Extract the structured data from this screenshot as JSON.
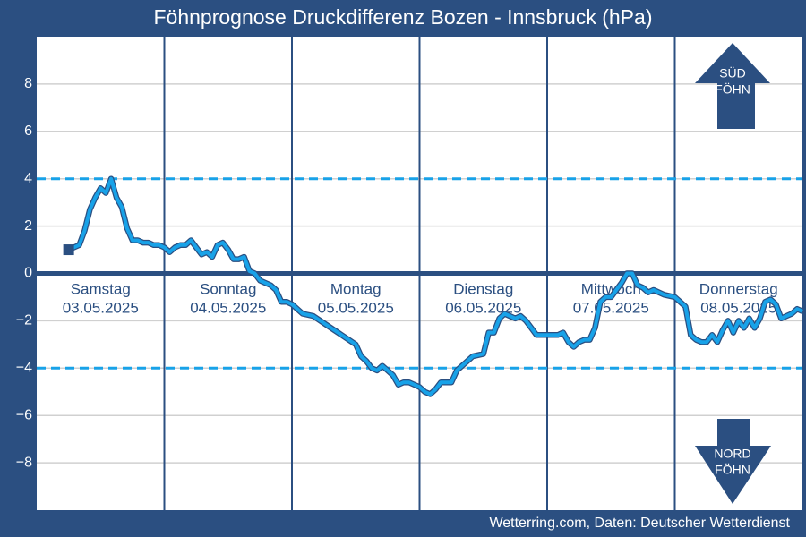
{
  "chart_data": {
    "type": "line",
    "title": "Föhnprognose Druckdifferenz Bozen - Innsbruck (hPa)",
    "source": "Wetterring.com, Daten: Deutscher Wetterdienst",
    "color": "#18a2e8",
    "x": [
      6,
      8,
      9,
      10,
      11,
      12,
      13,
      14,
      15,
      16,
      17,
      18,
      19,
      20,
      21,
      22,
      23,
      24,
      25,
      26,
      27,
      28,
      29,
      30,
      31,
      32,
      33,
      34,
      35,
      36,
      37,
      38,
      39,
      40,
      41,
      42,
      43,
      44,
      45,
      46,
      47,
      48,
      50,
      52,
      54,
      56,
      58,
      60,
      61,
      62,
      63,
      64,
      65,
      66,
      67,
      68,
      69,
      70,
      71,
      72,
      73,
      74,
      75,
      76,
      77,
      78,
      79,
      80,
      81,
      82,
      84,
      85,
      86,
      87,
      88,
      89,
      90,
      91,
      92,
      93,
      94,
      96,
      98,
      99,
      100,
      101,
      102,
      103,
      104,
      105,
      106,
      107,
      108,
      109,
      110,
      111,
      112,
      113,
      114,
      115,
      116,
      118,
      120,
      122,
      123,
      124,
      125,
      126,
      127,
      128,
      129,
      130,
      131,
      132,
      133,
      134,
      135,
      136,
      137,
      138,
      139,
      140,
      141,
      142,
      143,
      144
    ],
    "values": [
      1.0,
      1.2,
      1.8,
      2.7,
      3.2,
      3.6,
      3.4,
      4.0,
      3.2,
      2.8,
      1.9,
      1.4,
      1.4,
      1.3,
      1.3,
      1.2,
      1.2,
      1.1,
      0.9,
      1.1,
      1.2,
      1.2,
      1.4,
      1.1,
      0.8,
      0.9,
      0.7,
      1.2,
      1.3,
      1.0,
      0.6,
      0.6,
      0.7,
      0.1,
      0.0,
      -0.3,
      -0.4,
      -0.5,
      -0.7,
      -1.2,
      -1.2,
      -1.3,
      -1.7,
      -1.8,
      -2.1,
      -2.4,
      -2.7,
      -3.0,
      -3.5,
      -3.7,
      -4.0,
      -4.1,
      -3.9,
      -4.1,
      -4.3,
      -4.7,
      -4.6,
      -4.6,
      -4.7,
      -4.8,
      -5.0,
      -5.1,
      -4.9,
      -4.6,
      -4.6,
      -4.6,
      -4.1,
      -3.9,
      -3.7,
      -3.5,
      -3.4,
      -2.5,
      -2.5,
      -1.9,
      -1.7,
      -1.8,
      -1.9,
      -1.8,
      -2.0,
      -2.3,
      -2.6,
      -2.6,
      -2.6,
      -2.5,
      -2.9,
      -3.1,
      -2.9,
      -2.8,
      -2.8,
      -2.3,
      -1.2,
      -1.0,
      -1.0,
      -0.7,
      -0.4,
      0.0,
      0.0,
      -0.5,
      -0.6,
      -0.8,
      -0.7,
      -0.9,
      -1.0,
      -1.4,
      -2.6,
      -2.8,
      -2.9,
      -2.9,
      -2.6,
      -2.9,
      -2.4,
      -2.0,
      -2.5,
      -2.0,
      -2.3,
      -1.9,
      -2.3,
      -1.9,
      -1.2,
      -1.1,
      -1.3,
      -1.9,
      -1.8,
      -1.7,
      -1.5,
      -1.6
    ],
    "xlim": [
      0,
      144
    ],
    "xticks": [
      24,
      48,
      72,
      96,
      120
    ],
    "ylim": [
      -10,
      10
    ],
    "yticks": [
      {
        "value": -8,
        "label": "−8"
      },
      {
        "value": -6,
        "label": "−6"
      },
      {
        "value": -4,
        "label": "−4"
      },
      {
        "value": -2,
        "label": "−2"
      },
      0,
      2,
      4,
      6,
      8
    ],
    "grid": true,
    "reference_lines": [
      4,
      -4
    ],
    "days": [
      {
        "name": "Samstag",
        "date": "03.05.2025"
      },
      {
        "name": "Sonntag",
        "date": "04.05.2025"
      },
      {
        "name": "Montag",
        "date": "05.05.2025"
      },
      {
        "name": "Dienstag",
        "date": "06.05.2025"
      },
      {
        "name": "Mittwoch",
        "date": "07.05.2025"
      },
      {
        "name": "Donnerstag",
        "date": "08.05.2025"
      }
    ],
    "annotations": {
      "south": [
        "SÜD",
        "FÖHN"
      ],
      "north": [
        "NORD",
        "FÖHN"
      ]
    }
  }
}
